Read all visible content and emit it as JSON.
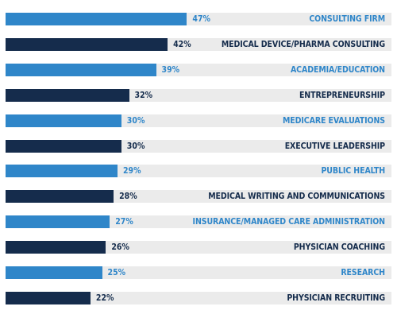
{
  "colors": {
    "light_bar": "#2f86c9",
    "dark_bar": "#152c4c",
    "track": "#ebebeb"
  },
  "chart_data": {
    "type": "bar",
    "orientation": "horizontal",
    "title": "",
    "xlabel": "",
    "ylabel": "",
    "grid": false,
    "legend": "none",
    "xlim": [
      0,
      100
    ],
    "categories": [
      "CONSULTING FIRM",
      "MEDICAL DEVICE/PHARMA CONSULTING",
      "ACADEMIA/EDUCATION",
      "ENTREPRENEURSHIP",
      "MEDICARE EVALUATIONS",
      "EXECUTIVE LEADERSHIP",
      "PUBLIC HEALTH",
      "MEDICAL WRITING AND COMMUNICATIONS",
      "INSURANCE/MANAGED CARE ADMINISTRATION",
      "PHYSICIAN COACHING",
      "RESEARCH",
      "PHYSICIAN RECRUITING"
    ],
    "values": [
      47,
      42,
      39,
      32,
      30,
      30,
      29,
      28,
      27,
      26,
      25,
      22
    ],
    "value_labels": [
      "47%",
      "42%",
      "39%",
      "32%",
      "30%",
      "30%",
      "29%",
      "28%",
      "27%",
      "26%",
      "25%",
      "22%"
    ]
  }
}
